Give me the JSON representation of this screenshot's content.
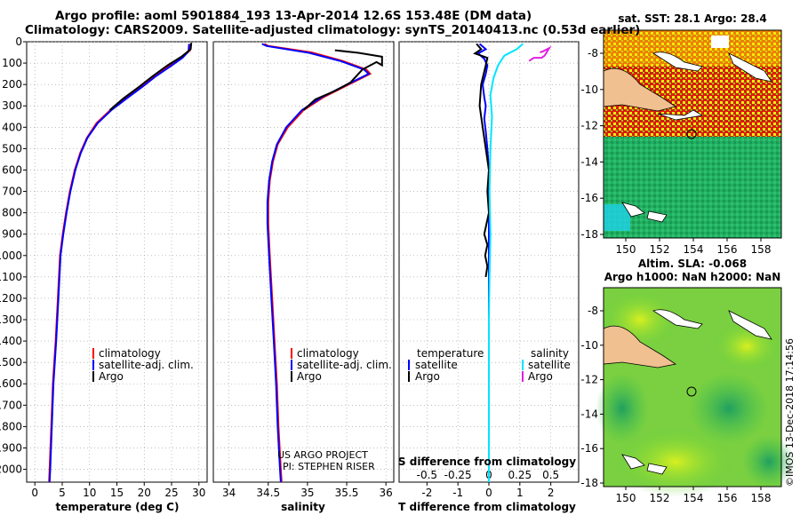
{
  "title": {
    "line1": "Argo profile: aoml 5901884_193 13-Apr-2014 12.6S 153.48E (DM data)",
    "line2": "Climatology: CARS2009. Satellite-adjusted climatology: synTS_20140413.nc (0.53d earlier)"
  },
  "colors": {
    "climatology": "#ff0000",
    "satellite": "#0000ff",
    "argo": "#000000",
    "sat_salinity": "#00e5ff",
    "argo_salinity": "#e020e0"
  },
  "depth_axis": {
    "ticks": [
      0,
      100,
      200,
      300,
      400,
      500,
      600,
      700,
      800,
      900,
      1000,
      1100,
      1200,
      1300,
      1400,
      1500,
      1600,
      1700,
      1800,
      1900,
      2000
    ],
    "range": [
      0,
      2060
    ]
  },
  "chart_data": [
    {
      "type": "line",
      "name": "temperature",
      "xlabel": "temperature (deg C)",
      "xlim": [
        -1.5,
        31.5
      ],
      "xticks": [
        0,
        5,
        10,
        15,
        20,
        25,
        30
      ],
      "legend": [
        "climatology",
        "satellite-adj. clim.",
        "Argo"
      ],
      "series": [
        {
          "name": "climatology",
          "color": "#ff0000",
          "points": [
            [
              28.5,
              10
            ],
            [
              28.4,
              40
            ],
            [
              26.8,
              75
            ],
            [
              24.5,
              115
            ],
            [
              22,
              160
            ],
            [
              19.5,
              210
            ],
            [
              16.5,
              265
            ],
            [
              13.8,
              320
            ],
            [
              11.3,
              380
            ],
            [
              9.5,
              450
            ],
            [
              8.3,
              520
            ],
            [
              7.3,
              600
            ],
            [
              6.4,
              700
            ],
            [
              5.7,
              800
            ],
            [
              5.1,
              900
            ],
            [
              4.6,
              1000
            ],
            [
              4.2,
              1200
            ],
            [
              3.8,
              1400
            ],
            [
              3.3,
              1600
            ],
            [
              3,
              1800
            ],
            [
              2.7,
              2000
            ],
            [
              2.6,
              2060
            ]
          ]
        },
        {
          "name": "satellite-adj. clim.",
          "color": "#0000ff",
          "points": [
            [
              28.2,
              10
            ],
            [
              28.1,
              45
            ],
            [
              27,
              75
            ],
            [
              24.8,
              115
            ],
            [
              22.2,
              160
            ],
            [
              19.7,
              210
            ],
            [
              16.8,
              265
            ],
            [
              14,
              320
            ],
            [
              11.5,
              380
            ],
            [
              9.6,
              450
            ],
            [
              8.4,
              520
            ],
            [
              7.4,
              600
            ],
            [
              6.5,
              700
            ],
            [
              5.8,
              800
            ],
            [
              5.2,
              900
            ],
            [
              4.7,
              1000
            ],
            [
              4.3,
              1200
            ],
            [
              3.9,
              1400
            ],
            [
              3.4,
              1600
            ],
            [
              3.1,
              1800
            ],
            [
              2.8,
              2000
            ],
            [
              2.7,
              2060
            ]
          ]
        },
        {
          "name": "Argo",
          "color": "#000000",
          "points": [
            [
              28.6,
              5
            ],
            [
              28.5,
              35
            ],
            [
              26.8,
              70
            ],
            [
              24.3,
              110
            ],
            [
              21.6,
              160
            ],
            [
              19,
              212
            ],
            [
              16.2,
              265
            ],
            [
              13.7,
              320
            ]
          ]
        }
      ]
    },
    {
      "type": "line",
      "name": "salinity",
      "xlabel": "salinity",
      "xlim": [
        33.8,
        36.1
      ],
      "xticks": [
        34,
        34.5,
        35,
        35.5,
        36
      ],
      "tick_labels": [
        "34",
        "34.5",
        "35",
        "35.5",
        "36"
      ],
      "legend": [
        "climatology",
        "satellite-adj. clim.",
        "Argo"
      ],
      "credit": [
        "US ARGO PROJECT",
        "PI: STEPHEN RISER"
      ],
      "series": [
        {
          "name": "climatology",
          "color": "#ff0000",
          "points": [
            [
              34.45,
              10
            ],
            [
              34.5,
              20
            ],
            [
              35.05,
              50
            ],
            [
              35.45,
              90
            ],
            [
              35.75,
              130
            ],
            [
              35.8,
              150
            ],
            [
              35.5,
              205
            ],
            [
              35.2,
              260
            ],
            [
              34.95,
              320
            ],
            [
              34.75,
              400
            ],
            [
              34.62,
              480
            ],
            [
              34.56,
              560
            ],
            [
              34.52,
              650
            ],
            [
              34.5,
              750
            ],
            [
              34.5,
              850
            ],
            [
              34.52,
              1000
            ],
            [
              34.55,
              1200
            ],
            [
              34.58,
              1400
            ],
            [
              34.61,
              1600
            ],
            [
              34.63,
              1800
            ],
            [
              34.66,
              2000
            ],
            [
              34.67,
              2060
            ]
          ]
        },
        {
          "name": "satellite-adj. clim.",
          "color": "#0000ff",
          "points": [
            [
              34.42,
              10
            ],
            [
              34.48,
              20
            ],
            [
              35.02,
              52
            ],
            [
              35.42,
              90
            ],
            [
              35.72,
              130
            ],
            [
              35.78,
              150
            ],
            [
              35.48,
              205
            ],
            [
              35.18,
              260
            ],
            [
              34.93,
              320
            ],
            [
              34.73,
              400
            ],
            [
              34.61,
              480
            ],
            [
              34.55,
              560
            ],
            [
              34.51,
              650
            ],
            [
              34.49,
              750
            ],
            [
              34.49,
              850
            ],
            [
              34.51,
              1000
            ],
            [
              34.54,
              1200
            ],
            [
              34.57,
              1400
            ],
            [
              34.6,
              1600
            ],
            [
              34.62,
              1800
            ],
            [
              34.65,
              2000
            ],
            [
              34.66,
              2060
            ]
          ]
        },
        {
          "name": "Argo",
          "color": "#000000",
          "points": [
            [
              35.35,
              40
            ],
            [
              35.65,
              52
            ],
            [
              35.95,
              70
            ],
            [
              35.95,
              110
            ],
            [
              35.88,
              95
            ],
            [
              35.7,
              130
            ],
            [
              35.55,
              190
            ],
            [
              35.35,
              230
            ],
            [
              35.1,
              270
            ],
            [
              34.95,
              320
            ]
          ]
        }
      ]
    },
    {
      "type": "line",
      "name": "difference",
      "xlabel": "T difference from climatology",
      "xlim": [
        -2.9,
        2.9
      ],
      "xticks": [
        -2,
        -1,
        0,
        1,
        2
      ],
      "s_label": "S difference from climatology",
      "s_ticks": [
        -0.5,
        -0.25,
        0,
        0.25,
        0.5
      ],
      "s_tick_labels": [
        "-0.5",
        "-0.25",
        "0",
        "0.25",
        "0.5"
      ],
      "legend_left": [
        "temperature",
        "satellite",
        "Argo"
      ],
      "legend_right": [
        "salinity",
        "satellite",
        "Argo"
      ],
      "series": [
        {
          "name": "T satellite",
          "color": "#0000ff",
          "points": [
            [
              -0.3,
              10
            ],
            [
              -0.1,
              35
            ],
            [
              -0.35,
              55
            ],
            [
              -0.15,
              80
            ],
            [
              -0.05,
              110
            ],
            [
              -0.1,
              150
            ],
            [
              -0.2,
              200
            ],
            [
              -0.15,
              260
            ],
            [
              -0.1,
              300
            ],
            [
              -0.15,
              360
            ],
            [
              -0.1,
              420
            ],
            [
              -0.05,
              500
            ],
            [
              0,
              600
            ],
            [
              0,
              700
            ],
            [
              0,
              800
            ],
            [
              0,
              900
            ],
            [
              0,
              1000
            ],
            [
              0,
              1200
            ],
            [
              0,
              1400
            ],
            [
              0,
              1600
            ],
            [
              0,
              1800
            ],
            [
              0,
              2000
            ],
            [
              0,
              2060
            ]
          ]
        },
        {
          "name": "T Argo",
          "color": "#000000",
          "points": [
            [
              -0.4,
              10
            ],
            [
              -0.25,
              35
            ],
            [
              -0.45,
              55
            ],
            [
              -0.05,
              75
            ],
            [
              -0.1,
              110
            ],
            [
              -0.25,
              200
            ],
            [
              -0.3,
              300
            ],
            [
              -0.2,
              400
            ],
            [
              -0.1,
              500
            ],
            [
              0,
              600
            ],
            [
              -0.05,
              700
            ],
            [
              0,
              800
            ],
            [
              -0.15,
              900
            ],
            [
              -0.05,
              950
            ],
            [
              -0.12,
              1000
            ],
            [
              -0.05,
              1050
            ],
            [
              -0.1,
              1100
            ]
          ]
        },
        {
          "name": "S satellite",
          "color": "#00e5ff",
          "points": [
            [
              1.1,
              10
            ],
            [
              0.9,
              35
            ],
            [
              0.5,
              65
            ],
            [
              0.3,
              110
            ],
            [
              0.15,
              170
            ],
            [
              0.05,
              250
            ],
            [
              0.1,
              350
            ],
            [
              0.05,
              500
            ],
            [
              0.02,
              700
            ],
            [
              0.05,
              900
            ],
            [
              0.02,
              1100
            ],
            [
              0,
              1300
            ],
            [
              0,
              1500
            ],
            [
              0,
              1700
            ],
            [
              0,
              1900
            ],
            [
              0,
              2060
            ]
          ]
        },
        {
          "name": "S Argo",
          "color": "#e020e0",
          "points": [
            [
              1.65,
              50
            ],
            [
              1.75,
              45
            ],
            [
              1.95,
              30
            ],
            [
              1.8,
              65
            ],
            [
              1.7,
              75
            ],
            [
              1.45,
              75
            ],
            [
              1.3,
              90
            ]
          ]
        }
      ]
    }
  ],
  "sst_map": {
    "title": "sat. SST: 28.1  Argo: 28.4",
    "xticks": [
      "150",
      "152",
      "154",
      "156",
      "158"
    ],
    "yticks": [
      "-8",
      "-10",
      "-12",
      "-14",
      "-16",
      "-18"
    ]
  },
  "sla_map": {
    "title1": "Altim. SLA: -0.068",
    "title2": "Argo h1000: NaN h2000: NaN",
    "xticks": [
      "150",
      "152",
      "154",
      "156",
      "158"
    ],
    "yticks": [
      "-8",
      "-10",
      "-12",
      "-14",
      "-16",
      "-18"
    ]
  },
  "stamp": "©IMOS 13-Dec-2018 17:14:56"
}
